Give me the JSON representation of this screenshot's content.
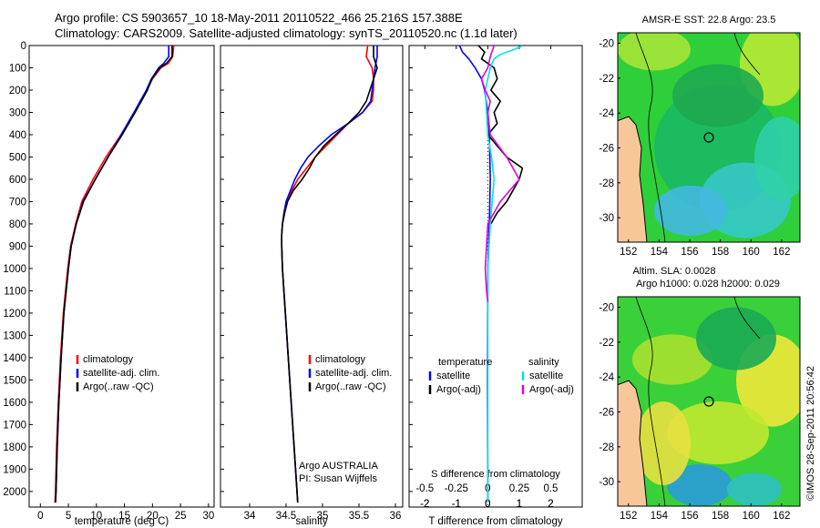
{
  "header": {
    "line1": "Argo profile: CS 5903657_10 18-May-2011 20110522_466 25.216S 157.388E",
    "line2": "Climatology: CARS2009. Satellite-adjusted climatology: synTS_20110520.nc (1.1d later)"
  },
  "colors": {
    "climatology": "#ff0000",
    "satellite": "#0000ff",
    "argo": "#000000",
    "sat_salinity": "#00e5e5",
    "argo_salinity": "#e000e0"
  },
  "chart_data": [
    {
      "type": "line",
      "id": "temperature",
      "xlabel": "temperature (deg C)",
      "ylabel": "",
      "xlim": [
        -2,
        31
      ],
      "ylim": [
        2070,
        0
      ],
      "x_ticks": [
        "0",
        "5",
        "10",
        "15",
        "20",
        "25",
        "30"
      ],
      "y_ticks": [
        "0",
        "100",
        "200",
        "300",
        "400",
        "500",
        "600",
        "700",
        "800",
        "900",
        "1000",
        "1100",
        "1200",
        "1300",
        "1400",
        "1500",
        "1600",
        "1700",
        "1800",
        "1900",
        "2000"
      ],
      "legend": [
        "climatology",
        "satellite-adj. clim.",
        "Argo(..raw -QC)"
      ],
      "series": [
        {
          "name": "climatology",
          "depth": [
            0,
            50,
            80,
            100,
            150,
            200,
            300,
            400,
            500,
            600,
            700,
            800,
            900,
            1000,
            1200,
            1400,
            1600,
            1800,
            2000,
            2050
          ],
          "values": [
            23.8,
            23.6,
            22.8,
            21.5,
            20.0,
            19.0,
            16.8,
            14.4,
            11.7,
            9.4,
            7.4,
            6.3,
            5.4,
            4.9,
            4.1,
            3.6,
            3.2,
            2.9,
            2.7,
            2.6
          ]
        },
        {
          "name": "satellite-adj. clim.",
          "depth": [
            0,
            50,
            80,
            100,
            150,
            200,
            300,
            400,
            500,
            600,
            700,
            800,
            900,
            1000,
            1200,
            1400,
            1600,
            1800,
            2000,
            2050
          ],
          "values": [
            22.9,
            22.9,
            22.0,
            21.1,
            19.8,
            18.9,
            16.7,
            14.4,
            12.1,
            9.8,
            7.6,
            6.4,
            5.5,
            5.0,
            4.2,
            3.7,
            3.3,
            3.0,
            2.8,
            2.7
          ]
        },
        {
          "name": "Argo(..raw -QC)",
          "depth": [
            0,
            50,
            80,
            100,
            150,
            200,
            300,
            400,
            500,
            600,
            700,
            800,
            900,
            1000,
            1200,
            1400,
            1600,
            1800,
            2000,
            2050
          ],
          "values": [
            23.5,
            23.5,
            22.5,
            21.3,
            19.9,
            19.1,
            16.9,
            14.6,
            12.1,
            9.8,
            7.7,
            6.4,
            5.5,
            5.0,
            4.2,
            3.7,
            3.3,
            3.0,
            2.8,
            2.7
          ]
        }
      ]
    },
    {
      "type": "line",
      "id": "salinity",
      "xlabel": "salinity",
      "xlim": [
        33.6,
        36.1
      ],
      "ylim": [
        2070,
        0
      ],
      "x_ticks": [
        "34",
        "34.5",
        "35",
        "35.5",
        "36"
      ],
      "legend": [
        "climatology",
        "satellite-adj. clim.",
        "Argo(..raw -QC)"
      ],
      "annotation": [
        "Argo AUSTRALIA",
        "PI: Susan Wijffels"
      ],
      "series": [
        {
          "name": "climatology",
          "depth": [
            0,
            50,
            100,
            150,
            200,
            250,
            300,
            350,
            400,
            450,
            500,
            550,
            600,
            650,
            700,
            750,
            800,
            850,
            900,
            1000,
            1200,
            1400,
            1600,
            1800,
            2000,
            2050
          ],
          "values": [
            35.62,
            35.6,
            35.68,
            35.7,
            35.7,
            35.68,
            35.55,
            35.35,
            35.2,
            35.05,
            34.9,
            34.78,
            34.66,
            34.58,
            34.52,
            34.48,
            34.45,
            34.44,
            34.44,
            34.45,
            34.49,
            34.53,
            34.57,
            34.61,
            34.65,
            34.66
          ]
        },
        {
          "name": "satellite-adj. clim.",
          "depth": [
            0,
            50,
            100,
            150,
            200,
            250,
            300,
            350,
            400,
            450,
            500,
            550,
            600,
            650,
            700,
            750,
            800,
            850,
            900,
            1000,
            1200,
            1400,
            1600,
            1800,
            2000,
            2050
          ],
          "values": [
            35.75,
            35.75,
            35.72,
            35.7,
            35.68,
            35.66,
            35.55,
            35.35,
            35.12,
            34.95,
            34.8,
            34.7,
            34.62,
            34.56,
            34.5,
            34.47,
            34.45,
            34.44,
            34.44,
            34.45,
            34.49,
            34.53,
            34.57,
            34.61,
            34.65,
            34.66
          ]
        },
        {
          "name": "Argo(..raw -QC)",
          "depth": [
            0,
            50,
            100,
            150,
            200,
            250,
            300,
            350,
            400,
            450,
            500,
            550,
            600,
            650,
            700,
            750,
            800,
            850,
            900,
            1000,
            1200,
            1400,
            1600,
            1800,
            2000,
            2050
          ],
          "values": [
            35.7,
            35.7,
            35.75,
            35.7,
            35.65,
            35.6,
            35.5,
            35.35,
            35.18,
            35.02,
            34.9,
            34.82,
            34.72,
            34.6,
            34.52,
            34.48,
            34.45,
            34.44,
            34.44,
            34.45,
            34.49,
            34.53,
            34.57,
            34.61,
            34.65,
            34.66
          ]
        }
      ]
    },
    {
      "type": "line",
      "id": "difference",
      "xlabel": "T difference from climatology",
      "xlabel_top": "S difference from climatology",
      "xlim": [
        -2.5,
        3.0
      ],
      "ylim": [
        2070,
        0
      ],
      "x_ticks": [
        "-2",
        "-1",
        "0",
        "1",
        "2"
      ],
      "x_ticks_top": [
        "-0.5",
        "-0.25",
        "0",
        "0.25",
        "0.5"
      ],
      "legend_left_title": "temperature",
      "legend_right_title": "salinity",
      "legend": [
        "satellite",
        "Argo(-adj)",
        "satellite",
        "Argo(-adj)"
      ],
      "series": [
        {
          "name": "satellite",
          "quantity": "temperature",
          "depth": [
            0,
            30,
            60,
            100,
            150,
            200,
            300,
            400,
            600,
            800,
            1000,
            1500,
            2000,
            2050
          ],
          "values": [
            -0.9,
            -0.8,
            -0.6,
            -0.4,
            -0.2,
            -0.1,
            0.0,
            0.05,
            0.08,
            0.05,
            0.0,
            -0.01,
            0.0,
            0.0
          ]
        },
        {
          "name": "Argo(-adj)",
          "quantity": "temperature",
          "depth": [
            0,
            30,
            60,
            100,
            150,
            200,
            250,
            300,
            350,
            400,
            450,
            500,
            550,
            600,
            650,
            700,
            750,
            800
          ],
          "values": [
            -0.3,
            -0.1,
            -0.2,
            0.2,
            0.3,
            0.1,
            0.4,
            0.2,
            0.3,
            0.0,
            0.3,
            0.6,
            1.1,
            1.0,
            0.8,
            0.6,
            0.3,
            0.1
          ]
        },
        {
          "name": "satellite",
          "quantity": "salinity",
          "depth": [
            0,
            20,
            40,
            60,
            100,
            150,
            200,
            300,
            400,
            500,
            600,
            800,
            1000,
            1500,
            2000,
            2050
          ],
          "values": [
            0.28,
            0.2,
            0.1,
            0.05,
            0.02,
            0.0,
            -0.02,
            -0.01,
            0.0,
            0.03,
            0.05,
            0.02,
            0.0,
            0.0,
            0.0,
            0.0
          ]
        },
        {
          "name": "Argo(-adj)",
          "quantity": "salinity",
          "depth": [
            0,
            50,
            100,
            150,
            200,
            250,
            300,
            400,
            500,
            550,
            600,
            700,
            800,
            900,
            1000,
            1100,
            1150
          ],
          "values": [
            0.05,
            0.02,
            0.0,
            -0.05,
            -0.02,
            0.02,
            0.0,
            0.02,
            0.15,
            0.2,
            0.25,
            0.1,
            0.0,
            -0.01,
            -0.02,
            -0.01,
            0.0
          ]
        }
      ]
    },
    {
      "type": "heatmap",
      "id": "sst_map",
      "title": "AMSR-E SST: 22.8 Argo: 23.5",
      "x_ticks": [
        "152",
        "154",
        "156",
        "158",
        "160",
        "162"
      ],
      "y_ticks": [
        "-20",
        "-22",
        "-24",
        "-26",
        "-28",
        "-30"
      ]
    },
    {
      "type": "heatmap",
      "id": "sla_map",
      "title_lines": [
        "Altim. SLA: 0.0028",
        "Argo h1000: 0.028 h2000: 0.029"
      ],
      "x_ticks": [
        "152",
        "154",
        "156",
        "158",
        "160",
        "162"
      ],
      "y_ticks": [
        "-20",
        "-22",
        "-24",
        "-26",
        "-28",
        "-30"
      ]
    }
  ],
  "stamp": "©IMOS 28-Sep-2011 20:56:42"
}
